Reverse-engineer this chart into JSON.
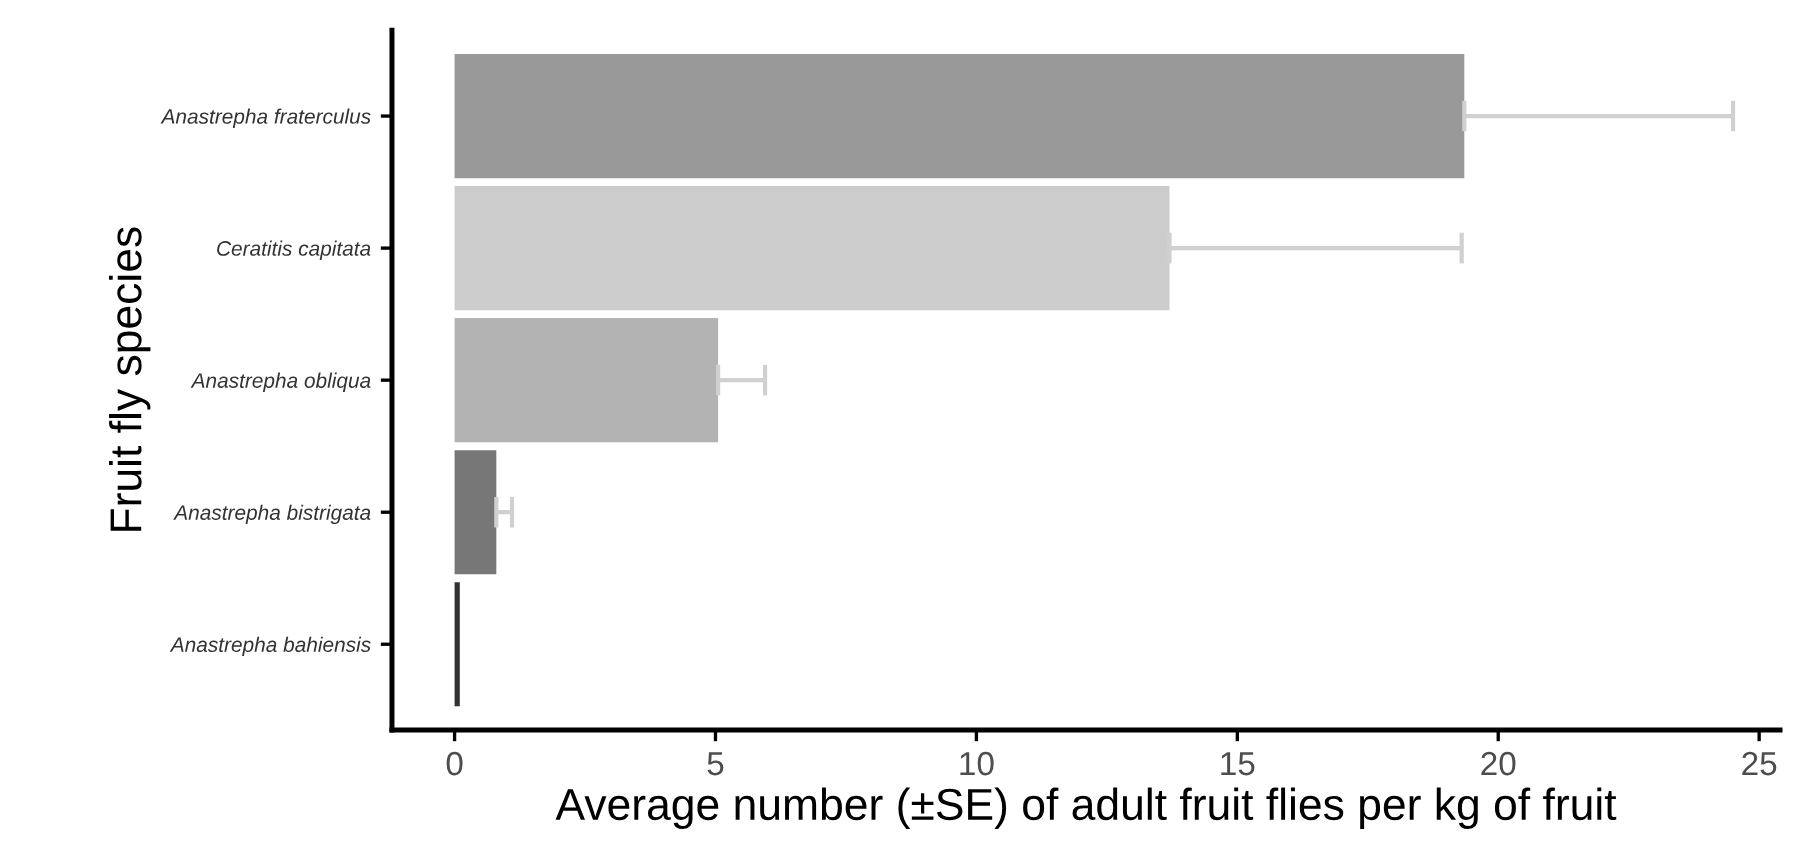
{
  "chart_data": {
    "type": "bar",
    "orientation": "horizontal",
    "xlabel": "Average number (±SE) of adult fruit flies per kg of fruit",
    "ylabel": "Fruit fly species",
    "categories": [
      "Anastrepha fraterculus",
      "Ceratitis capitata",
      "Anastrepha obliqua",
      "Anastrepha bistrigata",
      "Anastrepha bahiensis"
    ],
    "values": [
      19.35,
      13.7,
      5.05,
      0.8,
      0.1
    ],
    "errors": [
      [
        19.35,
        24.5
      ],
      [
        13.7,
        19.3
      ],
      [
        5.05,
        5.95
      ],
      [
        0.8,
        1.1
      ],
      null
    ],
    "colors": [
      "#999999",
      "#cccccc",
      "#b3b3b3",
      "#777777",
      "#333333"
    ],
    "xlim": [
      -1.2,
      25.4
    ],
    "xticks": [
      0,
      5,
      10,
      15,
      20,
      25
    ],
    "grid": false
  }
}
